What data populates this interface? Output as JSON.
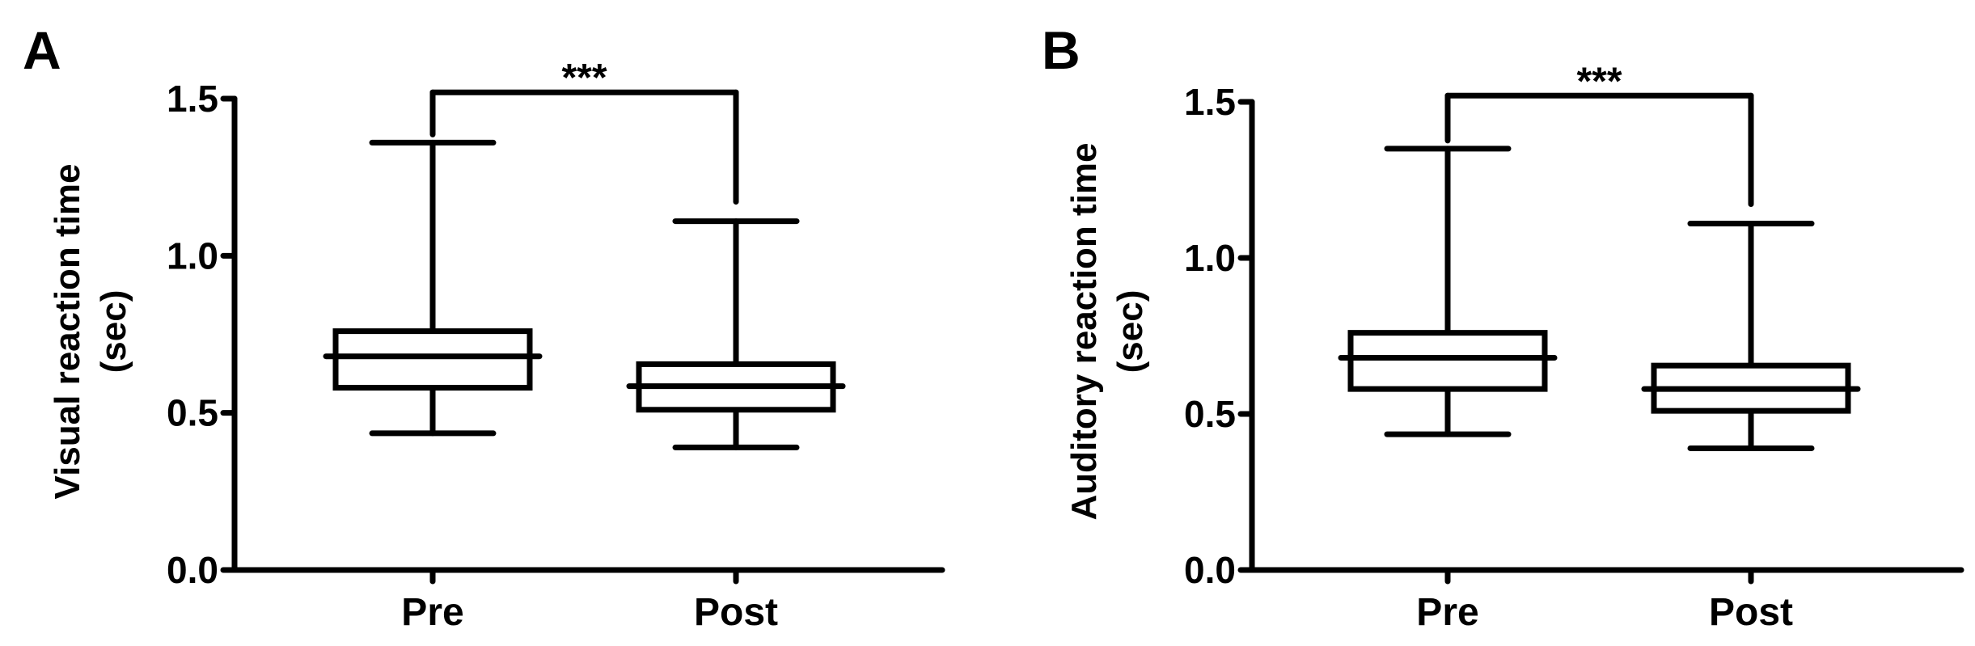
{
  "chart_data": [
    {
      "panel_label": "A",
      "type": "box",
      "categories": [
        "Pre",
        "Post"
      ],
      "ylabel_lines": [
        "Visual reaction time",
        "(sec)"
      ],
      "ylim": [
        0.0,
        1.5
      ],
      "yticks": [
        0.0,
        0.5,
        1.0,
        1.5
      ],
      "ytick_labels": [
        "0.0",
        "0.5",
        "1.0",
        "1.5"
      ],
      "boxes": [
        {
          "category": "Pre",
          "min": 0.435,
          "q1": 0.58,
          "median": 0.68,
          "q3": 0.76,
          "max": 1.36
        },
        {
          "category": "Post",
          "min": 0.39,
          "q1": 0.51,
          "median": 0.585,
          "q3": 0.655,
          "max": 1.11
        }
      ],
      "significance": {
        "from": "Pre",
        "to": "Post",
        "label": "***",
        "y": 1.52
      }
    },
    {
      "panel_label": "B",
      "type": "box",
      "categories": [
        "Pre",
        "Post"
      ],
      "ylabel_lines": [
        "Auditory reaction time",
        "(sec)"
      ],
      "ylim": [
        0.0,
        1.5
      ],
      "yticks": [
        0.0,
        0.5,
        1.0,
        1.5
      ],
      "ytick_labels": [
        "0.0",
        "0.5",
        "1.0",
        "1.5"
      ],
      "boxes": [
        {
          "category": "Pre",
          "min": 0.435,
          "q1": 0.58,
          "median": 0.68,
          "q3": 0.76,
          "max": 1.35
        },
        {
          "category": "Post",
          "min": 0.39,
          "q1": 0.51,
          "median": 0.58,
          "q3": 0.655,
          "max": 1.11
        }
      ],
      "significance": {
        "from": "Pre",
        "to": "Post",
        "label": "***",
        "y": 1.52
      }
    }
  ]
}
